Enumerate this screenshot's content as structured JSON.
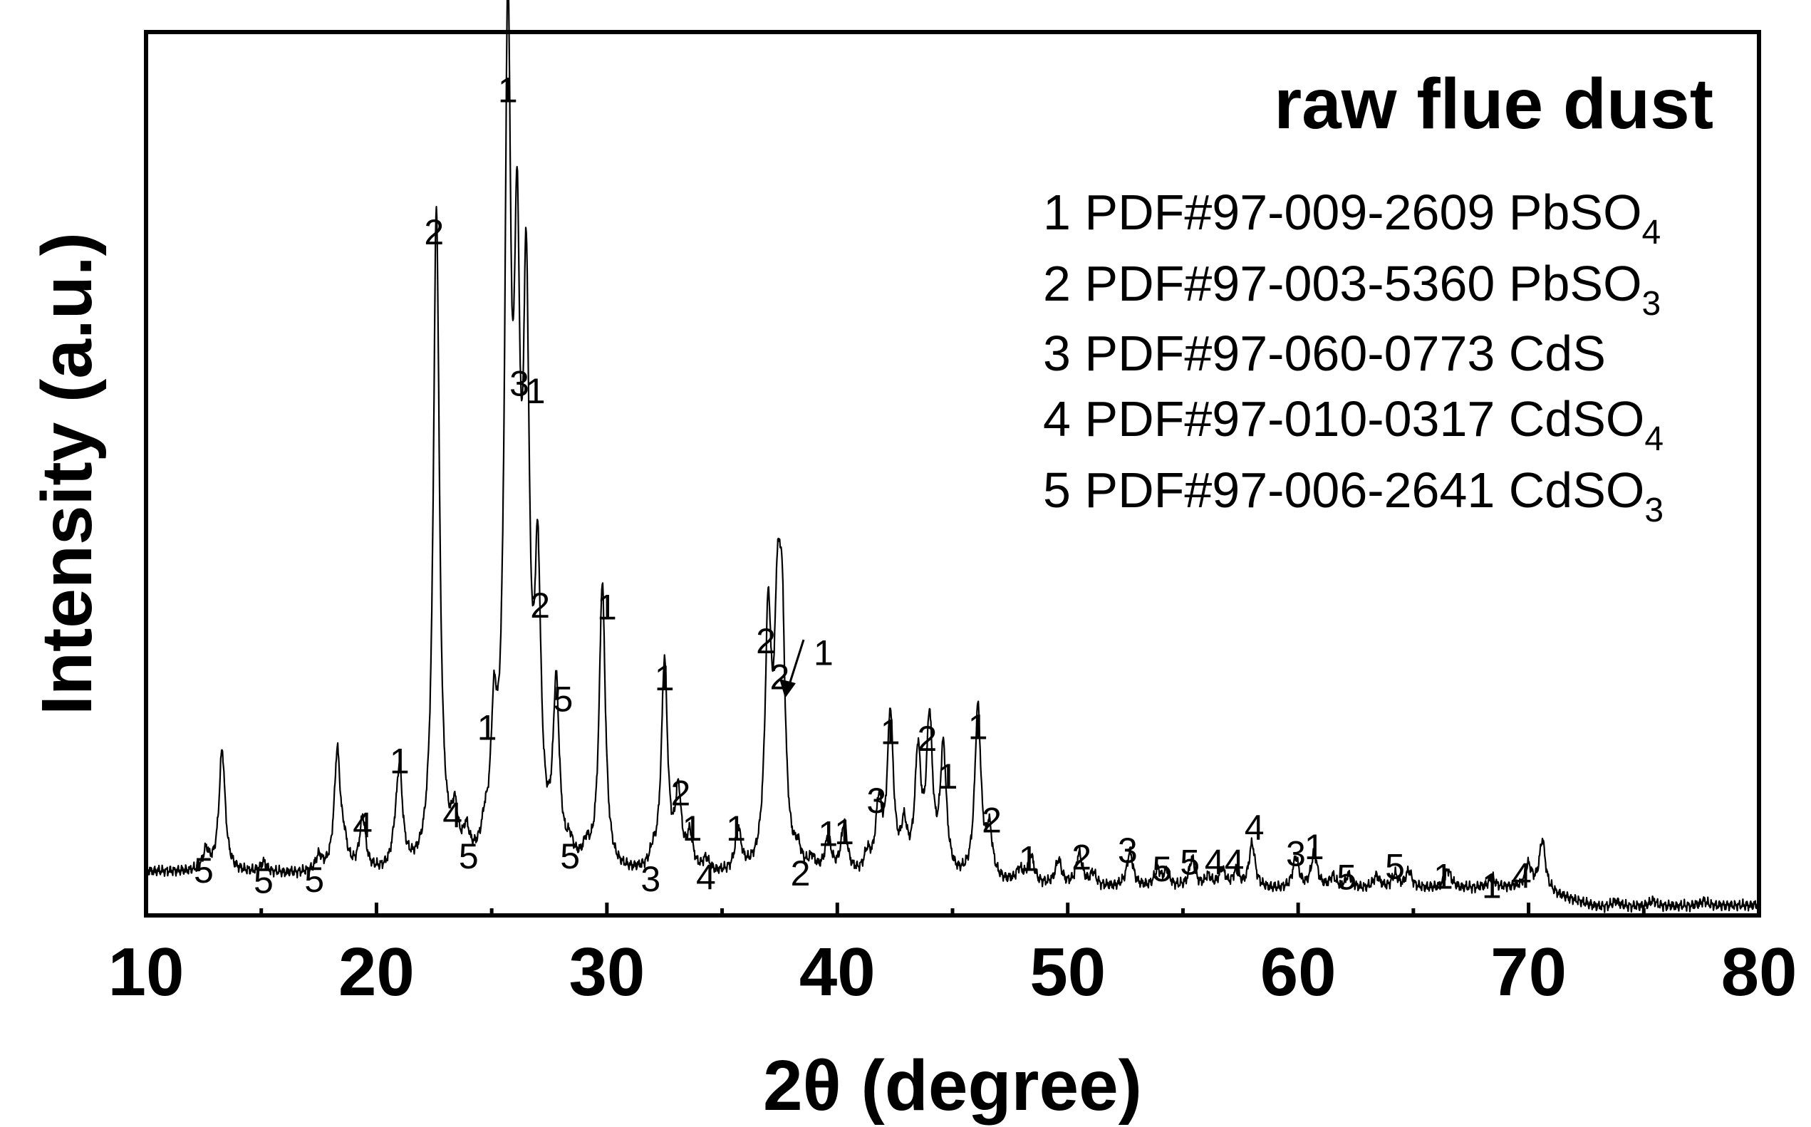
{
  "chart_data": {
    "type": "line",
    "title": "raw flue dust",
    "xlabel": "2θ (degree)",
    "ylabel": "Intensity (a.u.)",
    "xlim": [
      10,
      80
    ],
    "ylim": [
      0,
      105
    ],
    "x_ticks": [
      "10",
      "20",
      "30",
      "40",
      "50",
      "60",
      "70",
      "80"
    ],
    "grid": false,
    "legend_position": "top-right",
    "legend": [
      {
        "id": "1",
        "pdf": "PDF#97-009-2609",
        "phase": "PbSO",
        "sub": "4"
      },
      {
        "id": "2",
        "pdf": "PDF#97-003-5360",
        "phase": "PbSO",
        "sub": "3"
      },
      {
        "id": "3",
        "pdf": "PDF#97-060-0773",
        "phase": "CdS",
        "sub": ""
      },
      {
        "id": "4",
        "pdf": "PDF#97-010-0317",
        "phase": "CdSO",
        "sub": "4"
      },
      {
        "id": "5",
        "pdf": "PDF#97-006-2641",
        "phase": "CdSO",
        "sub": "3"
      }
    ],
    "series": [
      {
        "baseline": [
          [
            10,
            5.2
          ],
          [
            20,
            4.6
          ],
          [
            30,
            4.6
          ],
          [
            40,
            4.3
          ],
          [
            50,
            3.3
          ],
          [
            60,
            3.0
          ],
          [
            70,
            3.3
          ],
          [
            73,
            1.0
          ],
          [
            80,
            1.2
          ]
        ],
        "peaks": [
          [
            12.6,
            2.3
          ],
          [
            13.3,
            14.5
          ],
          [
            15.1,
            1.2
          ],
          [
            17.5,
            1.8
          ],
          [
            18.3,
            14.2
          ],
          [
            18.6,
            2.5
          ],
          [
            19.4,
            6.3
          ],
          [
            20.8,
            2.0
          ],
          [
            21.0,
            11.5
          ],
          [
            22.6,
            78.5
          ],
          [
            23.4,
            5.2
          ],
          [
            23.9,
            3.2
          ],
          [
            24.7,
            2.5
          ],
          [
            25.1,
            14.0
          ],
          [
            25.7,
            95.0
          ],
          [
            26.1,
            61.0
          ],
          [
            26.5,
            61.0
          ],
          [
            27.0,
            32.0
          ],
          [
            27.8,
            20.5
          ],
          [
            28.4,
            2.0
          ],
          [
            29.1,
            2.0
          ],
          [
            29.8,
            34.0
          ],
          [
            32.0,
            1.5
          ],
          [
            32.5,
            25.0
          ],
          [
            33.1,
            9.0
          ],
          [
            33.6,
            4.0
          ],
          [
            34.3,
            1.5
          ],
          [
            35.7,
            5.0
          ],
          [
            37.0,
            29.0
          ],
          [
            37.4,
            25.0
          ],
          [
            37.6,
            26.0
          ],
          [
            38.3,
            2.0
          ],
          [
            38.9,
            1.5
          ],
          [
            39.6,
            4.2
          ],
          [
            40.3,
            6.0
          ],
          [
            41.3,
            2.2
          ],
          [
            41.8,
            8.0
          ],
          [
            42.3,
            19.0
          ],
          [
            42.9,
            5.0
          ],
          [
            43.5,
            14.0
          ],
          [
            44.0,
            18.0
          ],
          [
            44.6,
            15.0
          ],
          [
            46.1,
            20.5
          ],
          [
            46.6,
            5.5
          ],
          [
            47.9,
            1.5
          ],
          [
            48.4,
            3.4
          ],
          [
            49.6,
            3.0
          ],
          [
            50.5,
            3.8
          ],
          [
            51.1,
            1.5
          ],
          [
            52.7,
            4.2
          ],
          [
            53.9,
            2.0
          ],
          [
            54.3,
            1.8
          ],
          [
            55.4,
            3.4
          ],
          [
            56.1,
            1.3
          ],
          [
            56.7,
            2.2
          ],
          [
            57.3,
            1.8
          ],
          [
            58.0,
            5.3
          ],
          [
            59.9,
            3.7
          ],
          [
            60.7,
            4.2
          ],
          [
            61.5,
            1.4
          ],
          [
            62.2,
            1.6
          ],
          [
            63.4,
            1.5
          ],
          [
            64.2,
            1.6
          ],
          [
            64.8,
            2.0
          ],
          [
            66.5,
            2.2
          ],
          [
            68.4,
            1.2
          ],
          [
            70.0,
            2.5
          ],
          [
            70.6,
            6.0
          ],
          [
            73.8,
            0.7
          ],
          [
            75.4,
            0.7
          ],
          [
            77.6,
            0.6
          ]
        ],
        "peak_width": 0.16
      }
    ],
    "peak_labels": [
      {
        "x": 12.5,
        "y": 5.4,
        "label": "5"
      },
      {
        "x": 15.1,
        "y": 4.2,
        "label": "5"
      },
      {
        "x": 17.3,
        "y": 4.3,
        "label": "5"
      },
      {
        "x": 19.4,
        "y": 10.8,
        "label": "4"
      },
      {
        "x": 21.0,
        "y": 18.4,
        "label": "1"
      },
      {
        "x": 22.5,
        "y": 81.3,
        "label": "2"
      },
      {
        "x": 23.3,
        "y": 12.0,
        "label": "4"
      },
      {
        "x": 24.0,
        "y": 7.1,
        "label": "5"
      },
      {
        "x": 24.8,
        "y": 22.4,
        "label": "1"
      },
      {
        "x": 25.7,
        "y": 98.2,
        "label": "1"
      },
      {
        "x": 26.2,
        "y": 63.3,
        "label": "3"
      },
      {
        "x": 26.9,
        "y": 62.4,
        "label": "1"
      },
      {
        "x": 27.1,
        "y": 36.9,
        "label": "2"
      },
      {
        "x": 28.1,
        "y": 25.8,
        "label": "5"
      },
      {
        "x": 28.4,
        "y": 7.1,
        "label": "5"
      },
      {
        "x": 30.0,
        "y": 36.7,
        "label": "1"
      },
      {
        "x": 31.9,
        "y": 4.4,
        "label": "3"
      },
      {
        "x": 32.5,
        "y": 28.3,
        "label": "1"
      },
      {
        "x": 33.2,
        "y": 14.6,
        "label": "2"
      },
      {
        "x": 33.7,
        "y": 10.4,
        "label": "1"
      },
      {
        "x": 34.3,
        "y": 4.6,
        "label": "4"
      },
      {
        "x": 35.6,
        "y": 10.4,
        "label": "1"
      },
      {
        "x": 36.9,
        "y": 32.7,
        "label": "2"
      },
      {
        "x": 37.5,
        "y": 28.4,
        "label": "2"
      },
      {
        "x": 39.4,
        "y": 31.3,
        "label": "1"
      },
      {
        "x": 38.4,
        "y": 5.1,
        "label": "2"
      },
      {
        "x": 39.6,
        "y": 9.8,
        "label": "1"
      },
      {
        "x": 40.3,
        "y": 10.0,
        "label": "1"
      },
      {
        "x": 41.7,
        "y": 13.7,
        "label": "3"
      },
      {
        "x": 42.3,
        "y": 21.9,
        "label": "1"
      },
      {
        "x": 43.9,
        "y": 21.1,
        "label": "2"
      },
      {
        "x": 44.8,
        "y": 16.6,
        "label": "1"
      },
      {
        "x": 46.1,
        "y": 22.5,
        "label": "1"
      },
      {
        "x": 46.7,
        "y": 11.4,
        "label": "2"
      },
      {
        "x": 48.3,
        "y": 6.8,
        "label": "1"
      },
      {
        "x": 50.6,
        "y": 7.0,
        "label": "2"
      },
      {
        "x": 52.6,
        "y": 7.8,
        "label": "3"
      },
      {
        "x": 54.1,
        "y": 5.6,
        "label": "5"
      },
      {
        "x": 55.3,
        "y": 6.4,
        "label": "5"
      },
      {
        "x": 56.8,
        "y": 6.4,
        "label": "44"
      },
      {
        "x": 58.1,
        "y": 10.5,
        "label": "4"
      },
      {
        "x": 59.9,
        "y": 7.4,
        "label": "3"
      },
      {
        "x": 60.7,
        "y": 8.2,
        "label": "1"
      },
      {
        "x": 62.1,
        "y": 4.6,
        "label": "5"
      },
      {
        "x": 64.2,
        "y": 5.9,
        "label": "5"
      },
      {
        "x": 66.3,
        "y": 4.7,
        "label": "1"
      },
      {
        "x": 68.4,
        "y": 3.6,
        "label": "1"
      },
      {
        "x": 69.7,
        "y": 4.8,
        "label": "4"
      }
    ]
  }
}
